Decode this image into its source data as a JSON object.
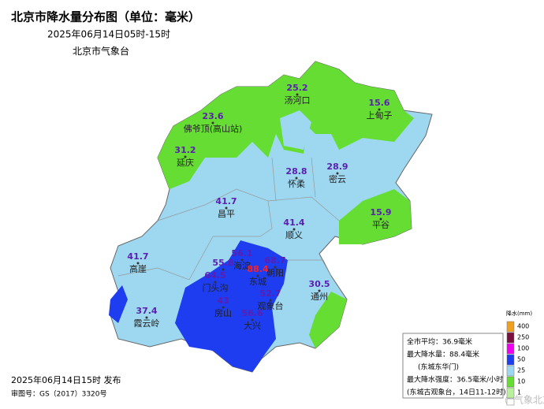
{
  "header": {
    "title": "北京市降水量分布图（单位：毫米）",
    "subtitle": "2025年06月14日05时-15时",
    "agency": "北京市气象台"
  },
  "stations": [
    {
      "name": "汤河口",
      "value": 25.2
    },
    {
      "name": "上甸子",
      "value": 15.6
    },
    {
      "name": "佛爷顶(高山站)",
      "value": 23.6
    },
    {
      "name": "延庆",
      "value": 31.2
    },
    {
      "name": "怀柔",
      "value": 28.8
    },
    {
      "name": "密云",
      "value": 28.9
    },
    {
      "name": "昌平",
      "value": 41.7
    },
    {
      "name": "顺义",
      "value": 41.4
    },
    {
      "name": "平谷",
      "value": 15.9
    },
    {
      "name": "高崖",
      "value": 41.7
    },
    {
      "name": "霞云岭",
      "value": 37.4
    },
    {
      "name": "海淀",
      "value": 56.1
    },
    {
      "value": 55.8
    },
    {
      "name": "朝阳",
      "value": 68.7
    },
    {
      "name": "东城",
      "value": 88.4
    },
    {
      "name": "门头沟",
      "value": 64.5
    },
    {
      "name": "房山",
      "value": 43
    },
    {
      "name": "观象台",
      "value": 52.7
    },
    {
      "name": "大兴",
      "value": 56.6
    },
    {
      "name": "通州",
      "value": 30.5
    }
  ],
  "legend": {
    "title": "降水(mm)",
    "levels": [
      400,
      250,
      100,
      50,
      25,
      10,
      1
    ],
    "colors": [
      "#f0a020",
      "#7a1040",
      "#f000f0",
      "#1e3cf0",
      "#9dd8f0",
      "#66dd33",
      "#b8f0a0"
    ]
  },
  "info": [
    "全市平均：36.9毫米",
    "最大降水量：88.4毫米",
    "(东城东华门)",
    "最大降水强度：36.5毫米/小时",
    "(东城古观象台，14日11-12时)"
  ],
  "footer": {
    "issued": "2025年06月14日15时 发布",
    "approval": "审图号：GS（2017）3320号",
    "watermark": "@气象北京"
  }
}
